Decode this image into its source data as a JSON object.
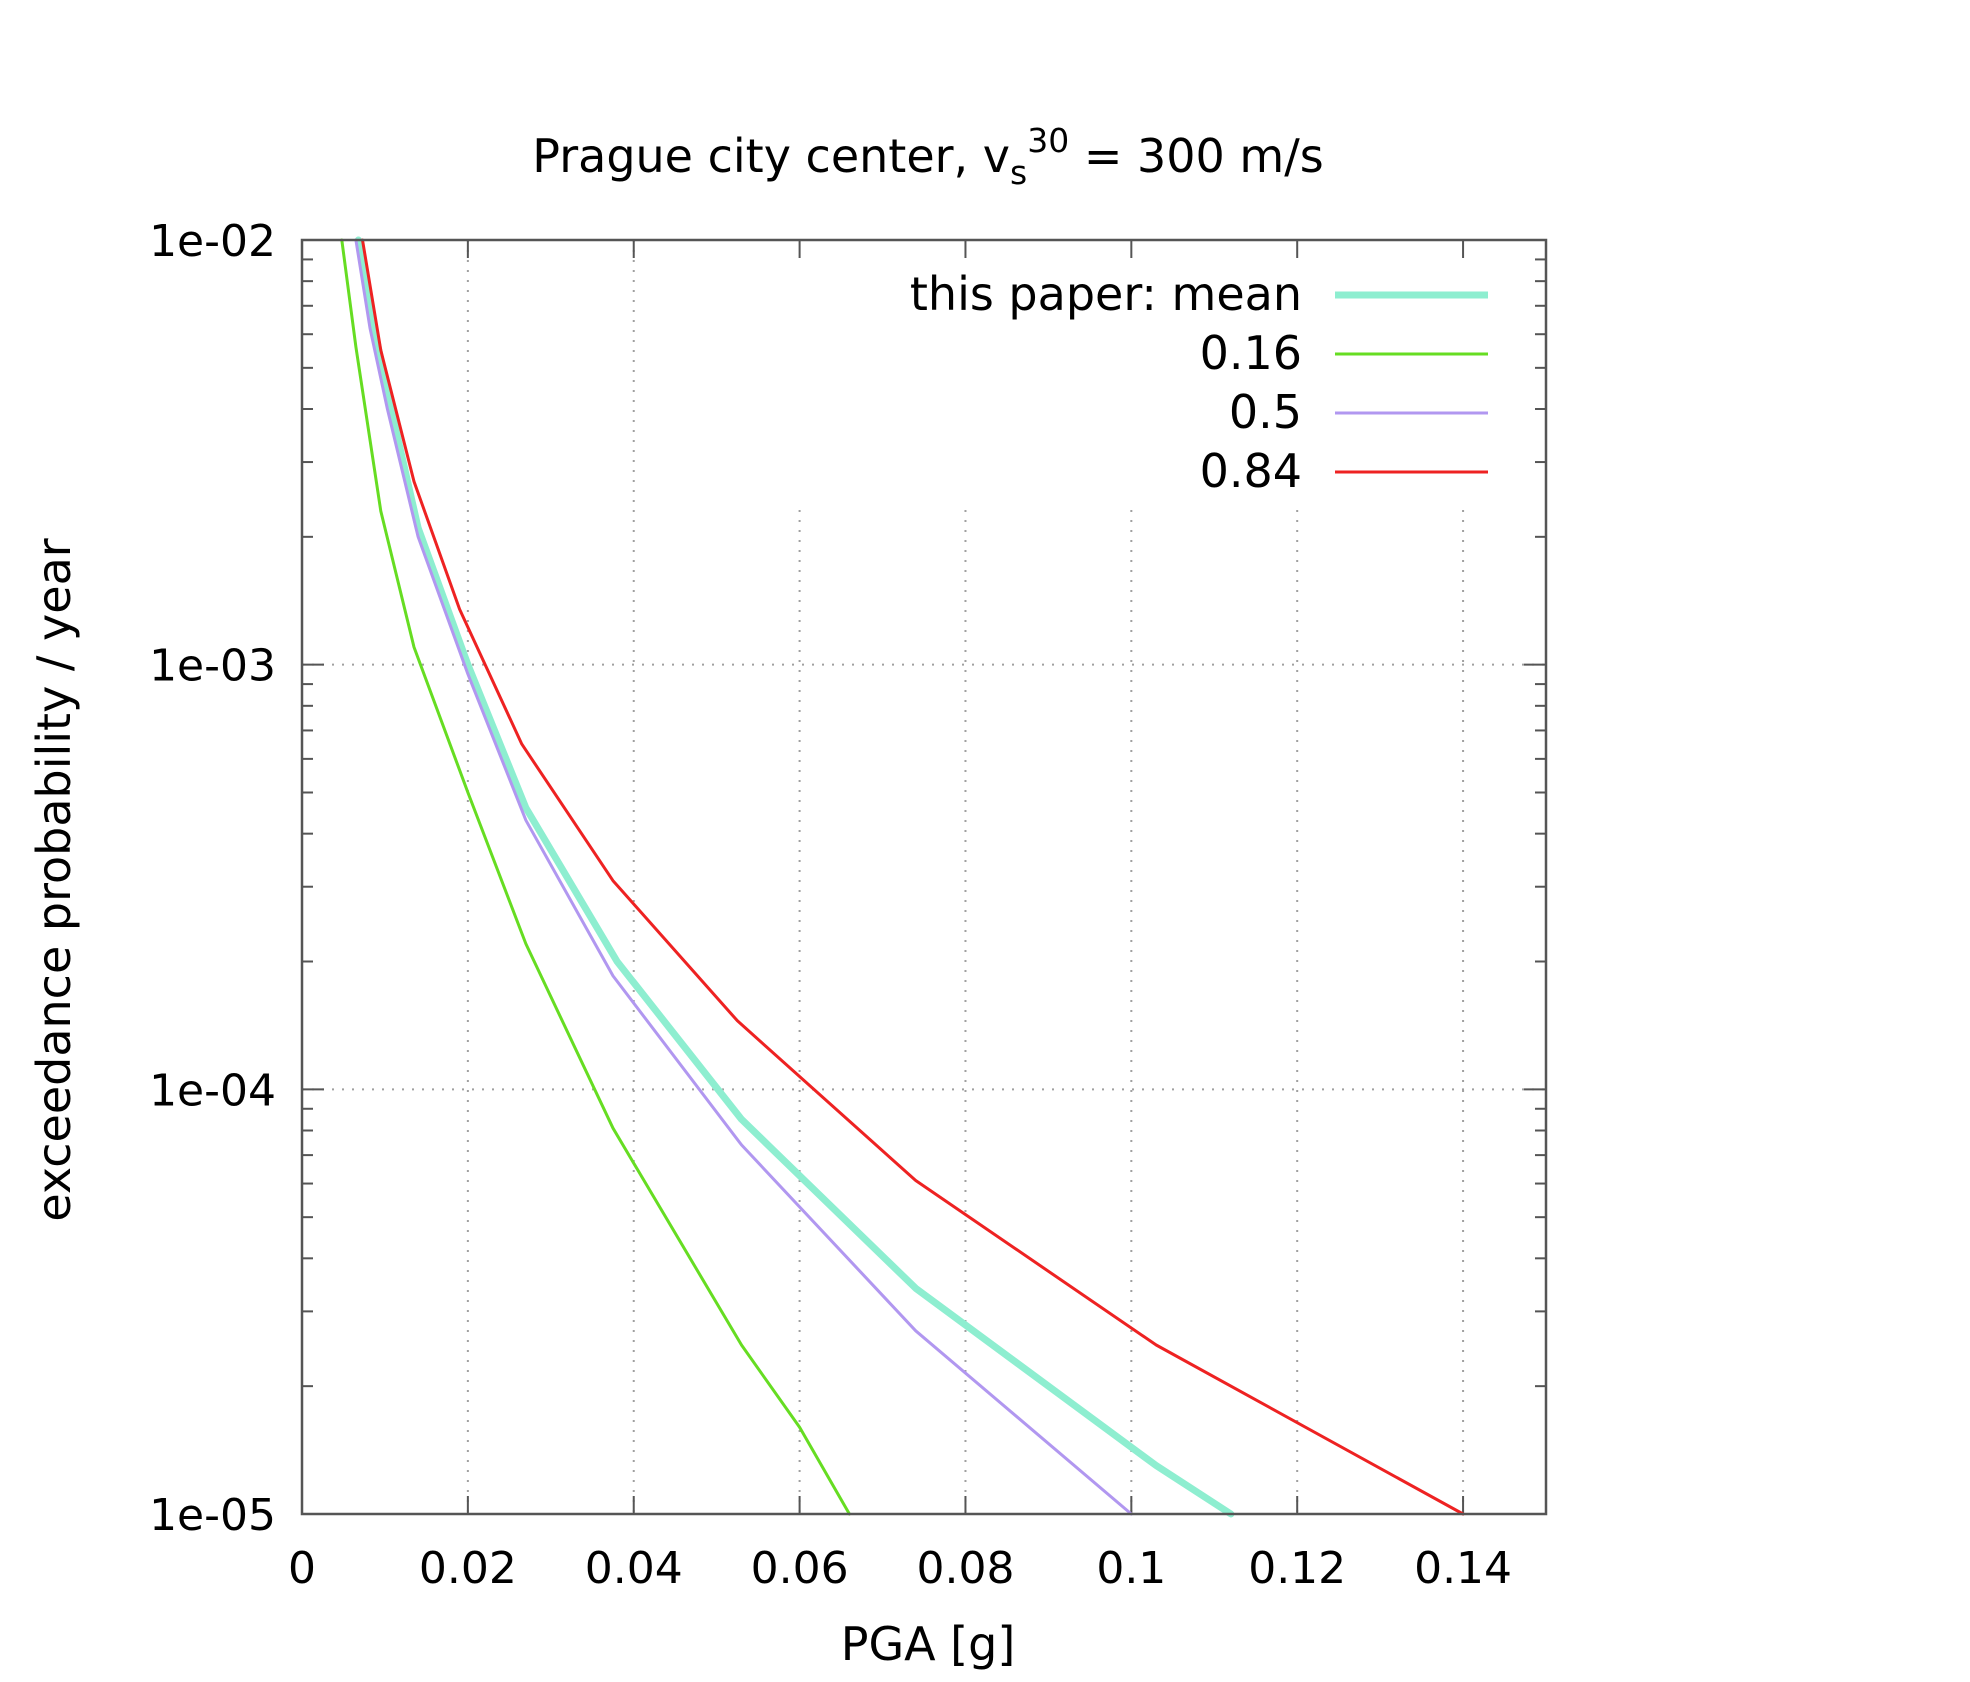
{
  "chart_data": {
    "type": "line",
    "title": {
      "main": "Prague city center, v",
      "sub": "s",
      "sup": "30",
      "rest": " = 300 m/s"
    },
    "xlabel": "PGA [g]",
    "ylabel": "exceedance probability / year",
    "xlim": [
      0,
      0.15
    ],
    "ylim": [
      1e-05,
      0.01
    ],
    "yscale": "log",
    "grid": true,
    "legend_position": "top-right",
    "xticks": [
      {
        "value": 0,
        "label": "0"
      },
      {
        "value": 0.02,
        "label": "0.02"
      },
      {
        "value": 0.04,
        "label": "0.04"
      },
      {
        "value": 0.06,
        "label": "0.06"
      },
      {
        "value": 0.08,
        "label": "0.08"
      },
      {
        "value": 0.1,
        "label": "0.1"
      },
      {
        "value": 0.12,
        "label": "0.12"
      },
      {
        "value": 0.14,
        "label": "0.14"
      }
    ],
    "yticks": [
      {
        "value": 1e-05,
        "label": "1e-05"
      },
      {
        "value": 0.0001,
        "label": "1e-04"
      },
      {
        "value": 0.001,
        "label": "1e-03"
      },
      {
        "value": 0.01,
        "label": "1e-02"
      }
    ],
    "series": [
      {
        "name": "this paper: mean",
        "color": "#8eeed0",
        "width": 7,
        "points": [
          [
            0.0068,
            0.01
          ],
          [
            0.0085,
            0.0065
          ],
          [
            0.0105,
            0.0042
          ],
          [
            0.014,
            0.0021
          ],
          [
            0.02,
            0.001
          ],
          [
            0.027,
            0.00046
          ],
          [
            0.038,
            0.0002
          ],
          [
            0.053,
            8.5e-05
          ],
          [
            0.074,
            3.4e-05
          ],
          [
            0.103,
            1.3e-05
          ],
          [
            0.112,
            1e-05
          ]
        ]
      },
      {
        "name": "0.16",
        "color": "#66dd22",
        "width": 3,
        "points": [
          [
            0.0048,
            0.01
          ],
          [
            0.0065,
            0.0056
          ],
          [
            0.0095,
            0.0023
          ],
          [
            0.0135,
            0.0011
          ],
          [
            0.02,
            0.0005
          ],
          [
            0.027,
            0.00022
          ],
          [
            0.0375,
            8.1e-05
          ],
          [
            0.053,
            2.5e-05
          ],
          [
            0.06,
            1.6e-05
          ],
          [
            0.066,
            1e-05
          ]
        ]
      },
      {
        "name": "0.5",
        "color": "#b197f0",
        "width": 3,
        "points": [
          [
            0.0065,
            0.01
          ],
          [
            0.0082,
            0.0062
          ],
          [
            0.0103,
            0.004
          ],
          [
            0.014,
            0.002
          ],
          [
            0.02,
            0.00095
          ],
          [
            0.027,
            0.00043
          ],
          [
            0.0375,
            0.000185
          ],
          [
            0.053,
            7.4e-05
          ],
          [
            0.074,
            2.7e-05
          ],
          [
            0.1,
            1e-05
          ]
        ]
      },
      {
        "name": "0.84",
        "color": "#ee2222",
        "width": 3,
        "points": [
          [
            0.0073,
            0.01
          ],
          [
            0.0095,
            0.0055
          ],
          [
            0.0135,
            0.0027
          ],
          [
            0.019,
            0.00135
          ],
          [
            0.0265,
            0.00065
          ],
          [
            0.0375,
            0.00031
          ],
          [
            0.0525,
            0.000145
          ],
          [
            0.074,
            6.1e-05
          ],
          [
            0.103,
            2.5e-05
          ],
          [
            0.14,
            1e-05
          ]
        ]
      }
    ]
  }
}
